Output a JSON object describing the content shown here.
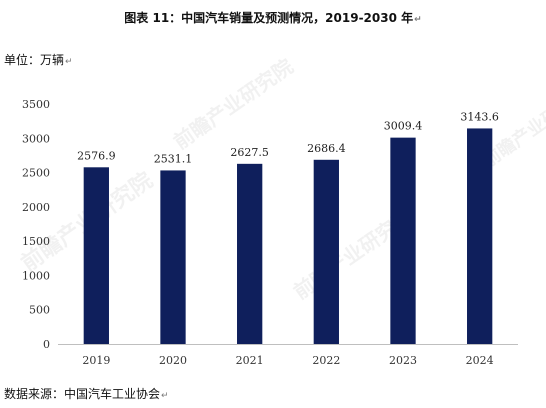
{
  "figure": {
    "title": "图表  11：中国汽车销量及预测情况，2019-2030 年",
    "unit": "单位：万辆",
    "source": "数据来源：中国汽车工业协会",
    "return_mark": "↵"
  },
  "watermark": {
    "brand": "前瞻产业研究院"
  },
  "chart_data": {
    "type": "bar",
    "title": "图表  11：中国汽车销量及预测情况，2019-2030 年",
    "ylabel": "单位：万辆",
    "categories": [
      "2019",
      "2020",
      "2021",
      "2022",
      "2023",
      "2024"
    ],
    "series": [
      {
        "values": [
          2576.9,
          2531.1,
          2627.5,
          2686.4,
          3009.4,
          3143.6
        ],
        "color": "#0f1f5c"
      }
    ],
    "data_labels": [
      "2576.9",
      "2531.1",
      "2627.5",
      "2686.4",
      "3009.4",
      "3143.6"
    ],
    "ylim": [
      0,
      3500
    ],
    "yticks": [
      0,
      500,
      1000,
      1500,
      2000,
      2500,
      3000,
      3500
    ],
    "grid": false,
    "legend": "none"
  }
}
